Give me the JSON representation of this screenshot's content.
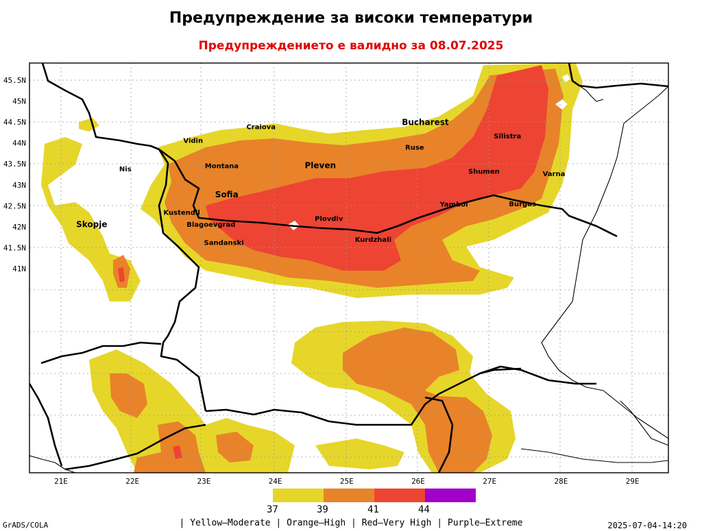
{
  "header": {
    "title": "Предупреждение за високи температури",
    "subtitle": "Предупреждението е валидно за 08.07.2025"
  },
  "axes": {
    "lon_labels": [
      "21E",
      "22E",
      "23E",
      "24E",
      "25E",
      "26E",
      "27E",
      "28E",
      "29E"
    ],
    "lat_labels": [
      "45.5N",
      "45N",
      "44.5N",
      "44N",
      "43.5N",
      "43N",
      "42.5N",
      "42N",
      "41.5N",
      "41N"
    ],
    "lon_range": [
      20.55,
      30.4
    ],
    "lat_range": [
      40.8,
      45.65
    ]
  },
  "colors": {
    "yellow": "#e6d62a",
    "orange": "#e8832a",
    "red": "#ee4433",
    "purple": "#a000c8",
    "border": "#000000"
  },
  "cities": [
    {
      "name": "Craiova",
      "lon": 23.8,
      "lat": 44.33
    },
    {
      "name": "Bucharest",
      "lon": 26.1,
      "lat": 44.43
    },
    {
      "name": "Silistra",
      "lon": 27.25,
      "lat": 44.11
    },
    {
      "name": "Vidin",
      "lon": 22.85,
      "lat": 44.0
    },
    {
      "name": "Ruse",
      "lon": 25.95,
      "lat": 43.84
    },
    {
      "name": "Montana",
      "lon": 23.25,
      "lat": 43.4
    },
    {
      "name": "Pleven",
      "lon": 24.63,
      "lat": 43.4
    },
    {
      "name": "Nis",
      "lon": 21.9,
      "lat": 43.32
    },
    {
      "name": "Shumen",
      "lon": 26.92,
      "lat": 43.27
    },
    {
      "name": "Varna",
      "lon": 27.9,
      "lat": 43.21
    },
    {
      "name": "Sofia",
      "lon": 23.32,
      "lat": 42.7
    },
    {
      "name": "Yambol",
      "lon": 26.5,
      "lat": 42.48
    },
    {
      "name": "Burgas",
      "lon": 27.46,
      "lat": 42.49
    },
    {
      "name": "Kustendil",
      "lon": 22.69,
      "lat": 42.28
    },
    {
      "name": "Plovdiv",
      "lon": 24.75,
      "lat": 42.14
    },
    {
      "name": "Skopje",
      "lon": 21.43,
      "lat": 41.99
    },
    {
      "name": "Blagoevgrad",
      "lon": 23.1,
      "lat": 42.0
    },
    {
      "name": "Kurdzhali",
      "lon": 25.37,
      "lat": 41.64
    },
    {
      "name": "Sandanski",
      "lon": 23.28,
      "lat": 41.56
    }
  ],
  "legend": {
    "thresholds": [
      "37",
      "39",
      "41",
      "44"
    ],
    "description": "| Yellow–Moderate | Orange–High | Red–Very High | Purple–Extreme"
  },
  "footer": {
    "source": "GrADS/COLA",
    "timestamp": "2025-07-04-14:20"
  }
}
